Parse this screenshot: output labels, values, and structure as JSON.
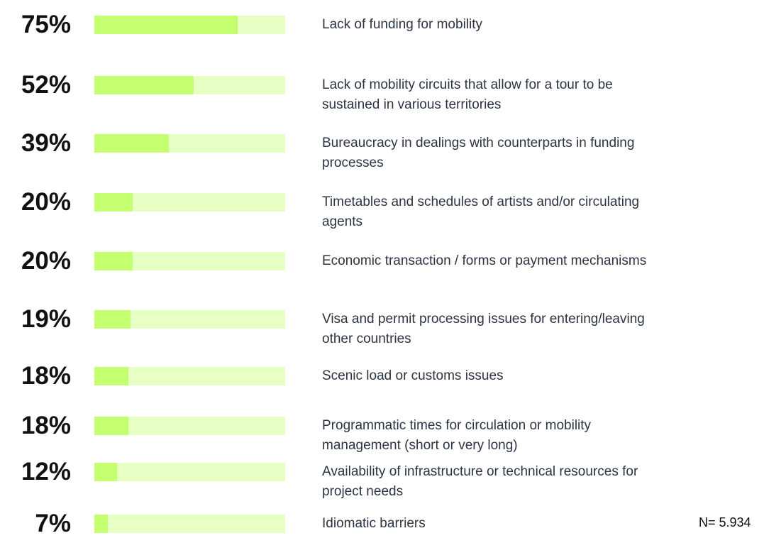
{
  "chart_data": {
    "type": "bar",
    "orientation": "horizontal",
    "categories": [
      "Lack of funding for mobility",
      "Lack of mobility circuits that allow for a tour to be sustained in various territories",
      "Bureaucracy in dealings with counterparts in funding processes",
      "Timetables and schedules of artists and/or circulating agents",
      "Economic transaction / forms or payment mechanisms",
      "Visa and permit processing issues for entering/leaving other countries",
      "Scenic load or customs issues",
      "Programmatic times for circulation or mobility management (short or very long)",
      "Availability of infrastructure or technical resources for project needs",
      "Idiomatic barriers"
    ],
    "values": [
      75,
      52,
      39,
      20,
      20,
      19,
      18,
      18,
      12,
      7
    ],
    "value_labels": [
      "75%",
      "52%",
      "39%",
      "20%",
      "20%",
      "19%",
      "18%",
      "18%",
      "12%",
      "7%"
    ],
    "xlim": [
      0,
      100
    ],
    "color": "#c3ff6e",
    "track_color": "#e6ffc2",
    "annotation": "N= 5.934"
  }
}
